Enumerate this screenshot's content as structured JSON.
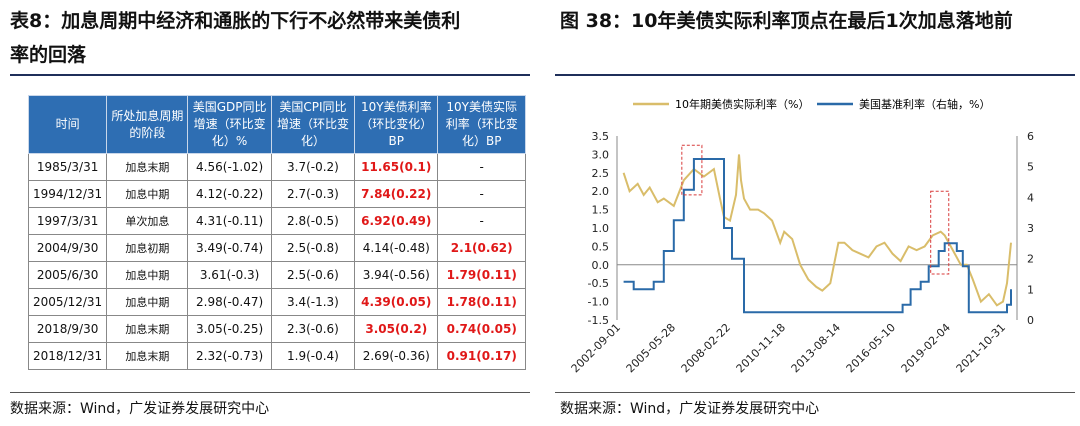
{
  "left": {
    "title_line1": "表8：加息周期中经济和通胀的下行不必然带来美债利",
    "title_line2": "率的回落",
    "source": "数据来源：Wind，广发证券发展研究中心"
  },
  "right": {
    "title": "图 38：10年美债实际利率顶点在最后1次加息落地前",
    "source": "数据来源：Wind，广发证券发展研究中心"
  },
  "table": {
    "headers": [
      "时间",
      "所处加息周期的阶段",
      "美国GDP同比增速（环比变化）%",
      "美国CPI同比增速（环比变化）",
      "10Y美债利率（环比变化）BP",
      "10Y美债实际利率（环比变化）BP"
    ],
    "rows": [
      {
        "date": "1985/3/31",
        "phase": "加息末期",
        "gdp": "4.56(-1.02)",
        "cpi": "3.7(-0.2)",
        "y10": "11.65(0.1)",
        "y10_red": true,
        "real": "-",
        "real_red": false
      },
      {
        "date": "1994/12/31",
        "phase": "加息中期",
        "gdp": "4.12(-0.22)",
        "cpi": "2.7(-0.3)",
        "y10": "7.84(0.22)",
        "y10_red": true,
        "real": "-",
        "real_red": false
      },
      {
        "date": "1997/3/31",
        "phase": "单次加息",
        "gdp": "4.31(-0.11)",
        "cpi": "2.8(-0.5)",
        "y10": "6.92(0.49)",
        "y10_red": true,
        "real": "-",
        "real_red": false
      },
      {
        "date": "2004/9/30",
        "phase": "加息初期",
        "gdp": "3.49(-0.74)",
        "cpi": "2.5(-0.8)",
        "y10": "4.14(-0.48)",
        "y10_red": false,
        "real": "2.1(0.62)",
        "real_red": true
      },
      {
        "date": "2005/6/30",
        "phase": "加息中期",
        "gdp": "3.61(-0.3)",
        "cpi": "2.5(-0.6)",
        "y10": "3.94(-0.56)",
        "y10_red": false,
        "real": "1.79(0.11)",
        "real_red": true
      },
      {
        "date": "2005/12/31",
        "phase": "加息中期",
        "gdp": "2.98(-0.47)",
        "cpi": "3.4(-1.3)",
        "y10": "4.39(0.05)",
        "y10_red": true,
        "real": "1.78(0.11)",
        "real_red": true
      },
      {
        "date": "2018/9/30",
        "phase": "加息末期",
        "gdp": "3.05(-0.25)",
        "cpi": "2.3(-0.6)",
        "y10": "3.05(0.2)",
        "y10_red": true,
        "real": "0.74(0.05)",
        "real_red": true
      },
      {
        "date": "2018/12/31",
        "phase": "加息末期",
        "gdp": "2.32(-0.73)",
        "cpi": "1.9(-0.4)",
        "y10": "2.69(-0.36)",
        "y10_red": false,
        "real": "0.91(0.17)",
        "real_red": true
      }
    ]
  },
  "chart_data": {
    "type": "line",
    "title": "",
    "x_ticks": [
      "2002-09-01",
      "2005-05-28",
      "2008-02-22",
      "2010-11-18",
      "2013-08-14",
      "2016-05-10",
      "2019-02-04",
      "2021-10-31"
    ],
    "y_left": {
      "ticks": [
        "3.5",
        "3.0",
        "2.5",
        "2.0",
        "1.5",
        "1.0",
        "0.5",
        "0.0",
        "-0.5",
        "-1.0",
        "-1.5"
      ],
      "range": [
        -1.5,
        3.5
      ]
    },
    "y_right": {
      "ticks": [
        "6",
        "5",
        "4",
        "3",
        "2",
        "1",
        "0"
      ],
      "range": [
        0,
        6
      ]
    },
    "grid": false,
    "legend_position": "top",
    "series": [
      {
        "name": "10年期美债实际利率（%）",
        "axis": "left",
        "color": "#d9bd6a",
        "x": [
          2003.0,
          2003.3,
          2003.7,
          2004.0,
          2004.3,
          2004.7,
          2005.0,
          2005.5,
          2006.0,
          2006.5,
          2007.0,
          2007.5,
          2007.8,
          2008.0,
          2008.3,
          2008.6,
          2008.75,
          2008.85,
          2009.0,
          2009.3,
          2009.7,
          2010.0,
          2010.4,
          2010.8,
          2011.0,
          2011.4,
          2011.8,
          2012.2,
          2012.6,
          2012.9,
          2013.3,
          2013.7,
          2014.0,
          2014.4,
          2014.8,
          2015.2,
          2015.6,
          2016.0,
          2016.4,
          2016.8,
          2017.2,
          2017.6,
          2018.0,
          2018.4,
          2018.8,
          2019.0,
          2019.4,
          2019.8,
          2020.1,
          2020.4,
          2020.8,
          2021.2,
          2021.6,
          2021.9,
          2022.1,
          2022.3
        ],
        "y": [
          2.5,
          2.0,
          2.2,
          1.9,
          2.1,
          1.7,
          1.8,
          1.6,
          2.3,
          2.6,
          2.4,
          2.6,
          1.8,
          1.3,
          1.2,
          1.9,
          3.0,
          2.3,
          1.8,
          1.5,
          1.5,
          1.4,
          1.2,
          0.6,
          0.9,
          0.7,
          0.0,
          -0.4,
          -0.6,
          -0.7,
          -0.5,
          0.6,
          0.6,
          0.4,
          0.3,
          0.2,
          0.5,
          0.6,
          0.3,
          0.1,
          0.5,
          0.4,
          0.5,
          0.8,
          0.9,
          0.8,
          0.4,
          0.0,
          0.0,
          -0.4,
          -1.0,
          -0.8,
          -1.1,
          -1.0,
          -0.5,
          0.6
        ]
      },
      {
        "name": "美国基准利率（右轴，%）",
        "axis": "right",
        "color": "#2a6aa8",
        "x": [
          2003.0,
          2003.5,
          2004.0,
          2004.5,
          2005.0,
          2005.5,
          2006.0,
          2006.5,
          2007.6,
          2008.0,
          2008.4,
          2009.0,
          2015.9,
          2016.9,
          2017.3,
          2017.8,
          2018.2,
          2018.7,
          2019.0,
          2019.6,
          2019.9,
          2020.2,
          2022.0,
          2022.1,
          2022.3
        ],
        "y": [
          1.25,
          1.0,
          1.0,
          1.25,
          2.25,
          3.25,
          4.25,
          5.25,
          5.25,
          3.0,
          2.0,
          0.25,
          0.25,
          0.5,
          1.0,
          1.25,
          1.75,
          2.25,
          2.5,
          2.25,
          1.75,
          0.25,
          0.25,
          0.5,
          1.0
        ]
      }
    ]
  }
}
